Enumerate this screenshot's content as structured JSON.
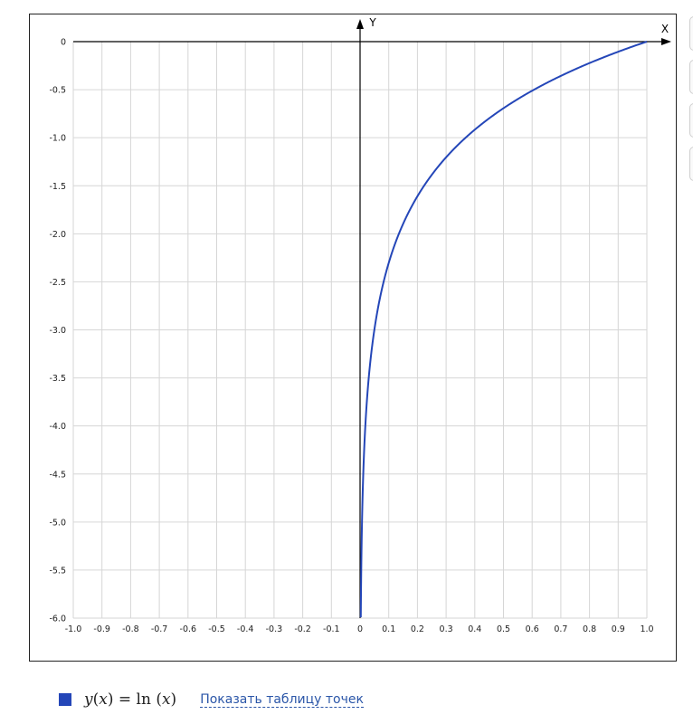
{
  "chart_data": {
    "type": "line",
    "title": "",
    "xlabel": "X",
    "ylabel": "Y",
    "xlim": [
      -1.0,
      1.0
    ],
    "ylim": [
      -6.0,
      0
    ],
    "grid": true,
    "x_ticks": [
      "-1.0",
      "-0.9",
      "-0.8",
      "-0.7",
      "-0.6",
      "-0.5",
      "-0.4",
      "-0.3",
      "-0.2",
      "-0.1",
      "0",
      "0.1",
      "0.2",
      "0.3",
      "0.4",
      "0.5",
      "0.6",
      "0.7",
      "0.8",
      "0.9",
      "1.0"
    ],
    "y_ticks": [
      "0",
      "-0.5",
      "-1.0",
      "-1.5",
      "-2.0",
      "-2.5",
      "-3.0",
      "-3.5",
      "-4.0",
      "-4.5",
      "-5.0",
      "-5.5",
      "-6.0"
    ],
    "series": [
      {
        "name": "y(x) = ln (x)",
        "color": "#2446b8",
        "x": [
          0.0025,
          0.005,
          0.01,
          0.02,
          0.03,
          0.05,
          0.07,
          0.1,
          0.15,
          0.2,
          0.25,
          0.3,
          0.4,
          0.5,
          0.6,
          0.7,
          0.8,
          0.9,
          1.0
        ],
        "y": [
          -6.0,
          -5.3,
          -4.61,
          -3.91,
          -3.51,
          -3.0,
          -2.66,
          -2.3,
          -1.9,
          -1.61,
          -1.39,
          -1.2,
          -0.92,
          -0.69,
          -0.51,
          -0.36,
          -0.22,
          -0.11,
          0
        ]
      }
    ]
  },
  "legend": {
    "swatch_color": "#2446b8",
    "formula_left": "y",
    "formula_paren_l": "(",
    "formula_var": "x",
    "formula_mid": ") = ln (",
    "formula_var2": "x",
    "formula_paren_r": ")",
    "link_text": "Показать таблицу точек"
  }
}
